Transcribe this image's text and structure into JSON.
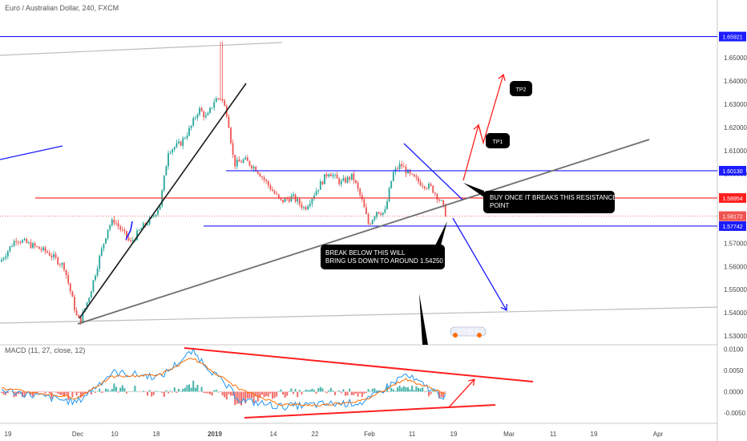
{
  "header": {
    "symbol_title": "Euro / Australian Dollar, 240, FXCM"
  },
  "macd_header": {
    "label": "MACD (11, 27, close, 12)"
  },
  "colors": {
    "up_candle": "#26a69a",
    "down_candle": "#ef5350",
    "trend_blue": "#1c1cff",
    "resistance_red": "#ff1f1f",
    "black_line": "#1a1a1a",
    "grey_line": "#6e6e6e",
    "current_price": "#ef5350",
    "macd_line": "#2196f3",
    "signal_line": "#ff6d00"
  },
  "annotations": {
    "tp1": "TP1",
    "tp2": "TP2",
    "buy_note_line1": "BUY ONCE IT BREAKS THIS RESISTANCE",
    "buy_note_line2": "POINT",
    "break_note_line1": "BREAK BELOW THIS WILL",
    "break_note_line2": "BRING US DOWN TO AROUND 1.54250",
    "small_badge": "2 7 15 6"
  },
  "price_tags": {
    "top": "1.65921",
    "resistance_blue": "1.60130",
    "resistance_red": "1.58954",
    "current": "1.58172",
    "support_blue": "1.57742"
  },
  "chart_data": [
    {
      "type": "line",
      "title": "Euro / Australian Dollar, 240, FXCM",
      "xlabel": "",
      "ylabel": "",
      "x_ticks": [
        "19",
        "Dec",
        "10",
        "18",
        "2019",
        "14",
        "22",
        "Feb",
        "11",
        "19",
        "Mar",
        "11",
        "19",
        "Apr"
      ],
      "y_ticks": [
        "1.65000",
        "1.64000",
        "1.63000",
        "1.62000",
        "1.61000",
        "1.60000",
        "1.57000",
        "1.56000",
        "1.55000",
        "1.54000",
        "1.53000"
      ],
      "ylim": [
        1.5265,
        1.6645
      ],
      "grid": false,
      "series": [
        {
          "kind": "candlestick",
          "close_path": [
            {
              "x": "19",
              "y": 1.562
            },
            {
              "x": "Nov 26",
              "y": 1.569
            },
            {
              "x": "Dec",
              "y": 1.539
            },
            {
              "x": "10",
              "y": 1.576
            },
            {
              "x": "14",
              "y": 1.572
            },
            {
              "x": "18",
              "y": 1.584
            },
            {
              "x": "Dec 24",
              "y": 1.615
            },
            {
              "x": "2019",
              "y": 1.63
            },
            {
              "x": "Jan 6",
              "y": 1.603
            },
            {
              "x": "14",
              "y": 1.588
            },
            {
              "x": "22",
              "y": 1.59
            },
            {
              "x": "Jan 28",
              "y": 1.592
            },
            {
              "x": "Feb",
              "y": 1.585
            },
            {
              "x": "Feb 6",
              "y": 1.602
            },
            {
              "x": "11",
              "y": 1.599
            },
            {
              "x": "Feb 15",
              "y": 1.5817
            }
          ],
          "high": 1.657,
          "low": 1.534
        }
      ],
      "horizontal_levels": [
        1.65921,
        1.6013,
        1.58954,
        1.58172,
        1.57742
      ],
      "target_level": 1.5425
    },
    {
      "type": "bar",
      "title": "MACD (11, 27, close, 12)",
      "y_ticks": [
        "0.0100",
        "0.0050",
        "0.0000",
        "-0.0050"
      ],
      "ylim": [
        -0.0075,
        0.0108
      ],
      "series": [
        {
          "name": "",
          "kind": "macd",
          "x": [
            "19",
            "Dec",
            "10",
            "18",
            "2019",
            "Jan 6",
            "14",
            "22",
            "Feb",
            "11",
            "Feb 15"
          ],
          "values": [
            0.0005,
            -0.0025,
            0.0045,
            0.0035,
            0.0095,
            -0.002,
            -0.0035,
            -0.003,
            -0.0025,
            0.004,
            -0.0015
          ]
        },
        {
          "name": "",
          "kind": "signal",
          "x": [
            "19",
            "Dec",
            "10",
            "18",
            "2019",
            "Jan 6",
            "14",
            "22",
            "Feb",
            "11",
            "Feb 15"
          ],
          "values": [
            0.0008,
            -0.0015,
            0.0035,
            0.004,
            0.008,
            0.0005,
            -0.003,
            -0.0032,
            -0.002,
            0.003,
            -0.0005
          ]
        }
      ]
    }
  ]
}
